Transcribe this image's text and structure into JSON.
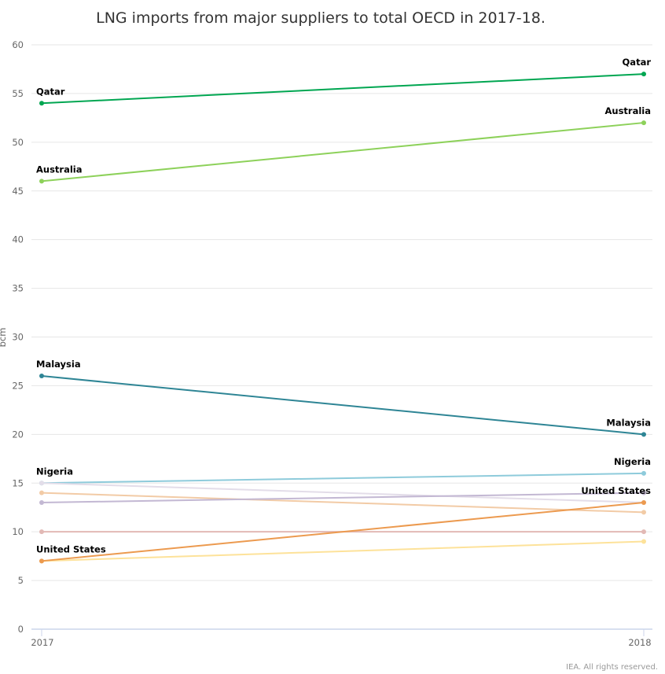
{
  "chart_data": {
    "type": "line",
    "title": "LNG imports from major suppliers to total OECD in 2017-18.",
    "ylabel": "bcm",
    "xlabel": "",
    "categories": [
      "2017",
      "2018"
    ],
    "ylim": [
      0,
      60
    ],
    "yticks": [
      0,
      5,
      10,
      15,
      20,
      25,
      30,
      35,
      40,
      45,
      50,
      55,
      60
    ],
    "grid": true,
    "series": [
      {
        "name": "Qatar",
        "values": [
          54,
          57
        ],
        "color": "#00a651",
        "labeled": true
      },
      {
        "name": "Australia",
        "values": [
          46,
          52
        ],
        "color": "#8dd15a",
        "labeled": true
      },
      {
        "name": "Malaysia",
        "values": [
          26,
          20
        ],
        "color": "#2e8595",
        "labeled": true
      },
      {
        "name": "Nigeria",
        "values": [
          15,
          16
        ],
        "color": "#8ecbdb",
        "labeled": true
      },
      {
        "values": [
          15,
          13
        ],
        "color": "#e3dde9",
        "labeled": false
      },
      {
        "values": [
          14,
          12
        ],
        "color": "#f2cba6",
        "labeled": false
      },
      {
        "values": [
          13,
          14
        ],
        "color": "#c3b8d3",
        "labeled": false
      },
      {
        "values": [
          10,
          10
        ],
        "color": "#e2b9b5",
        "labeled": false
      },
      {
        "values": [
          7,
          9
        ],
        "color": "#fde29a",
        "labeled": false
      },
      {
        "name": "United States",
        "values": [
          7,
          13
        ],
        "color": "#ec9a4f",
        "labeled": true
      }
    ]
  },
  "credit": "IEA. All rights reserved."
}
